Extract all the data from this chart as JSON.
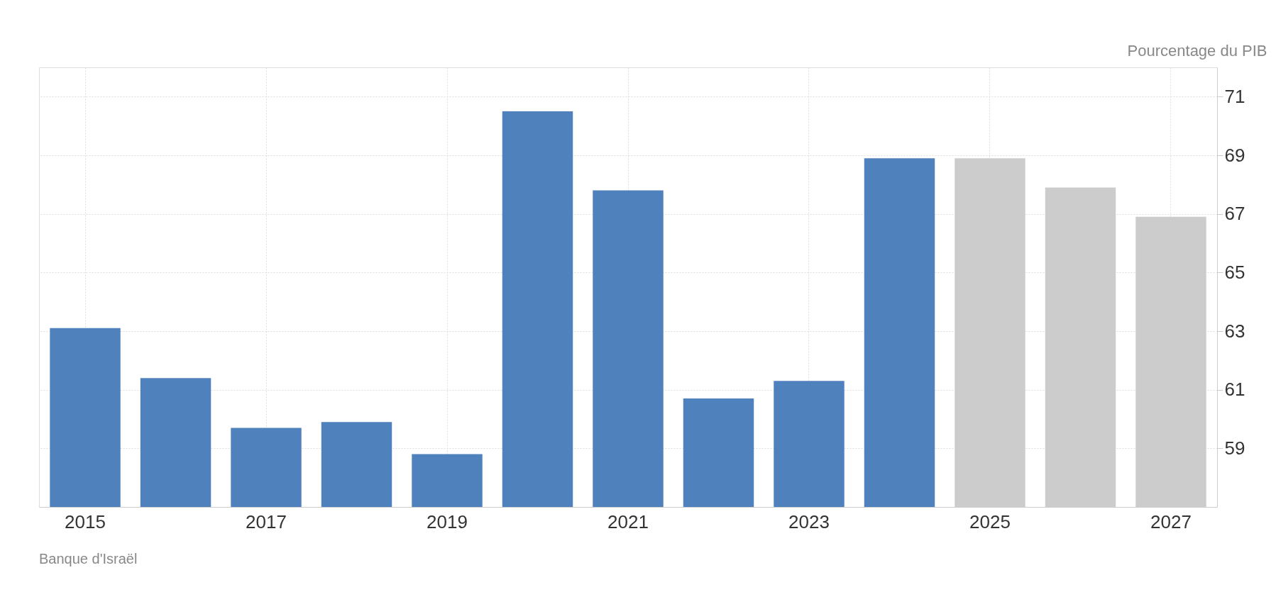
{
  "chart_data": {
    "type": "bar",
    "ylabel": "Pourcentage du PIB",
    "categories": [
      "2015",
      null,
      "2017",
      null,
      "2019",
      null,
      "2021",
      null,
      "2023",
      null,
      "2025",
      null,
      "2027"
    ],
    "values": [
      63.1,
      61.4,
      59.7,
      59.9,
      58.8,
      70.5,
      67.8,
      60.7,
      61.3,
      68.9,
      68.9,
      67.9,
      66.9
    ],
    "colors": [
      "#4f81bd",
      "#4f81bd",
      "#4f81bd",
      "#4f81bd",
      "#4f81bd",
      "#4f81bd",
      "#4f81bd",
      "#4f81bd",
      "#4f81bd",
      "#4f81bd",
      "#cccccc",
      "#cccccc",
      "#cccccc"
    ],
    "ylim": [
      57,
      72
    ],
    "yticks": [
      59,
      61,
      63,
      65,
      67,
      69,
      71
    ],
    "grid": true,
    "annotations": [
      "Banque d'Israël"
    ]
  }
}
